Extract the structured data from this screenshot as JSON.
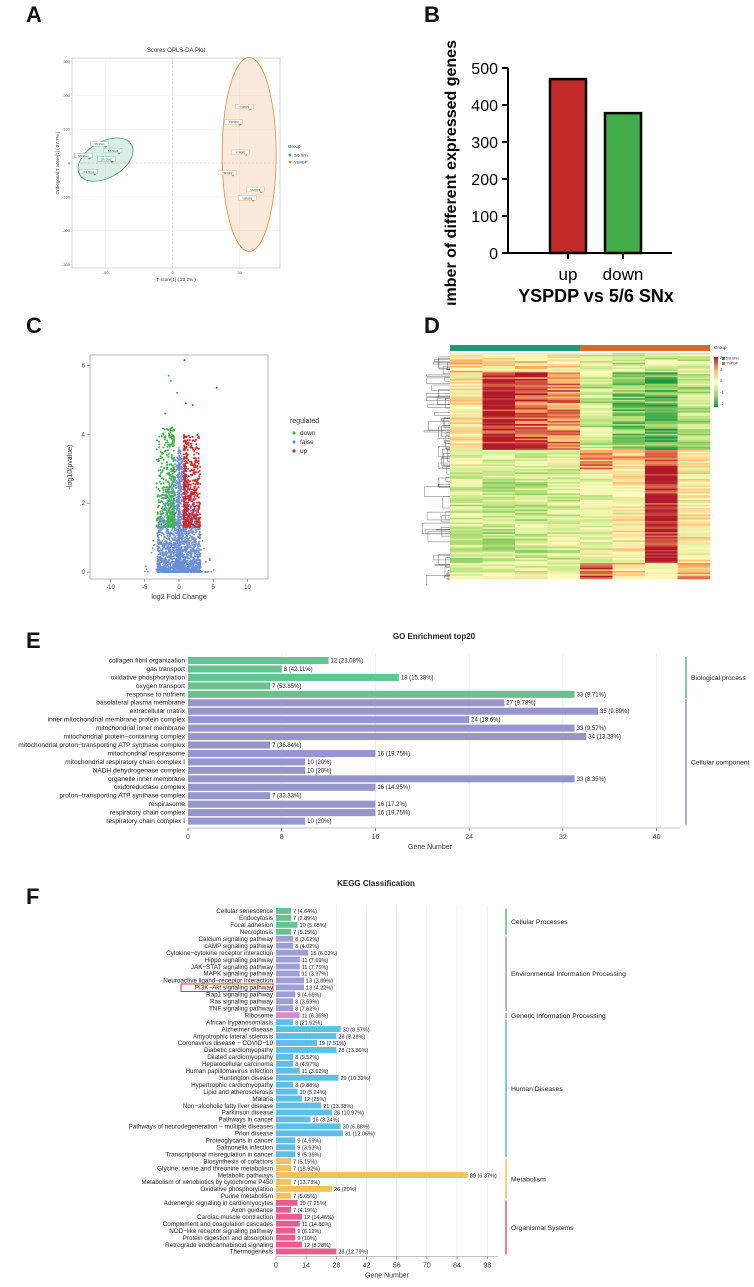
{
  "panel_labels": {
    "a": "A",
    "b": "B",
    "c": "C",
    "d": "D",
    "e": "E",
    "f": "F"
  },
  "colors": {
    "green": "#3e9b6f",
    "orange": "#e58a3c",
    "red_bar": "#c42a2a",
    "green_bar": "#43ad4b",
    "go_bp": "#66c28e",
    "go_cc": "#9696cc",
    "kegg_cp": "#66c28e",
    "kegg_eip": "#9f9fd6",
    "kegg_gip": "#d88ad8",
    "kegg_hd": "#5bbfe6",
    "kegg_met": "#f5c15a",
    "kegg_os": "#e85c91",
    "heat_high": "#b2182b",
    "heat_mid": "#ffffbf",
    "heat_low": "#1a9641"
  },
  "chart_data": [
    {
      "id": "A",
      "type": "scatter",
      "title": "Scores OPLS-DA Plot",
      "xlabel": "T score[1] ( 23.2% )",
      "ylabel": "Orthogonal T score[1] ( 27.7% )",
      "xlim": [
        -75,
        80
      ],
      "ylim": [
        -310,
        310
      ],
      "xticks": [
        "-50",
        "0",
        "50"
      ],
      "yticks": [
        "300",
        "200",
        "100",
        "0",
        "-100",
        "-200",
        "-300"
      ],
      "legend_title": "Group",
      "series": [
        {
          "name": "5/6 SNx",
          "points": [
            [
              -50,
              50,
              "5/6 SNx1"
            ],
            [
              -45,
              5,
              "5/6 SNx2"
            ],
            [
              -62,
              15,
              "5/6 SNx3"
            ],
            [
              -58,
              -32,
              "5/6 SNx4"
            ],
            [
              -40,
              30,
              "5/6 SNx5"
            ]
          ]
        },
        {
          "name": "YSPDP",
          "points": [
            [
              58,
              160,
              "YSPDP1"
            ],
            [
              50,
              115,
              "YSPDP2"
            ],
            [
              55,
              25,
              "YSPDP3"
            ],
            [
              45,
              -35,
              "YSPDP4"
            ],
            [
              60,
              -110,
              "YSPDP5"
            ],
            [
              66,
              -85,
              "YSPDP6"
            ]
          ]
        }
      ]
    },
    {
      "id": "B",
      "type": "bar",
      "categories": [
        "up",
        "down"
      ],
      "values": [
        470,
        378
      ],
      "ylabel": "number of different expressed genes",
      "xlabel": "YSPDP vs 5/6 SNx",
      "ylim": [
        0,
        500
      ],
      "yticks": [
        "0",
        "100",
        "200",
        "300",
        "400",
        "500"
      ]
    },
    {
      "id": "C",
      "type": "scatter",
      "title": "Volcano plot",
      "xlabel": "log2 Fold Change",
      "ylabel": "-log10(pvalue)",
      "xlim": [
        -13,
        13
      ],
      "ylim": [
        -0.2,
        6.3
      ],
      "xticks": [
        "-10",
        "-5",
        "0",
        "5",
        "10"
      ],
      "yticks": [
        "0",
        "2",
        "4",
        "6"
      ],
      "legend_title": "regulated",
      "legend": [
        "down",
        "false",
        "up"
      ],
      "series_counts": {
        "down": 378,
        "false": 2600,
        "up": 470
      },
      "outliers": [
        [
          0.8,
          6.15
        ],
        [
          5.5,
          5.35
        ],
        [
          -1.5,
          5.7
        ],
        [
          -1.2,
          5.55
        ],
        [
          -0.3,
          5.2
        ],
        [
          2.0,
          4.85
        ],
        [
          -2.0,
          4.6
        ],
        [
          1.0,
          4.9
        ]
      ]
    },
    {
      "id": "D",
      "type": "heatmap",
      "legend_title": "Group",
      "groups": [
        "5/6 SNx",
        "YSPDP"
      ],
      "scale_ticks": [
        "2",
        "1",
        "0",
        "-1",
        "-2"
      ],
      "columns": 8,
      "rows": 140,
      "blocks": [
        {
          "rows": [
            0,
            12
          ],
          "cols": [
            0.5,
            0.3,
            0.5,
            0.3,
            -0.4,
            -0.6,
            -0.5,
            -0.4
          ]
        },
        {
          "rows": [
            12,
            60
          ],
          "cols": [
            0.2,
            1.9,
            1.6,
            1.2,
            -0.6,
            -1.2,
            -1.5,
            -0.7
          ]
        },
        {
          "rows": [
            60,
            72
          ],
          "cols": [
            -0.3,
            -0.4,
            -0.3,
            -0.2,
            1.1,
            0.8,
            1.6,
            0.3
          ]
        },
        {
          "rows": [
            72,
            130
          ],
          "cols": [
            -0.5,
            -0.7,
            -0.6,
            -0.4,
            -0.2,
            0.2,
            2.0,
            0.2
          ]
        },
        {
          "rows": [
            130,
            140
          ],
          "cols": [
            -0.4,
            -0.3,
            -0.2,
            -0.3,
            1.5,
            0.5,
            0.3,
            0.9
          ]
        }
      ]
    },
    {
      "id": "E",
      "type": "bar",
      "orientation": "horizontal",
      "title": "GO Enrichment top20",
      "xlabel": "Gene Number",
      "xlim": [
        0,
        42
      ],
      "xticks": [
        "0",
        "8",
        "16",
        "24",
        "32",
        "40"
      ],
      "categories": [
        "collagen fibril organization",
        "gas transport",
        "oxidative phosphorylation",
        "oxygen transport",
        "response to nutrient",
        "basolateral plasma membrane",
        "extracellular matrix",
        "inner mitochondrial membrane protein complex",
        "mitochondrial inner membrane",
        "mitochondrial protein−containing complex",
        "mitochondrial proton−transporting ATP synthase complex",
        "mitochondrial respirasome",
        "mitochondrial respiratory chain complex I",
        "NADH dehydrogenase complex",
        "organelle inner membrane",
        "oxidoreductase complex",
        "proton−transporting ATP synthase complex",
        "respirasome",
        "respiratory chain complex",
        "respiratory chain complex I"
      ],
      "values": [
        12,
        8,
        18,
        7,
        33,
        27,
        35,
        24,
        33,
        34,
        7,
        16,
        10,
        10,
        33,
        16,
        7,
        16,
        16,
        10
      ],
      "labels": [
        "12 (23.08%)",
        "8 (42.11%)",
        "18 (15.38%)",
        "7 (53.85%)",
        "33 (9.71%)",
        "27 (9.78%)",
        "35 (9.89%)",
        "24 (18.6%)",
        "33 (9.57%)",
        "34 (13.28%)",
        "7 (36.84%)",
        "16 (19.75%)",
        "10 (20%)",
        "10 (20%)",
        "33 (8.35%)",
        "16 (14.95%)",
        "7 (33.33%)",
        "16 (17.2%)",
        "16 (19.75%)",
        "10 (20%)"
      ],
      "groups": [
        {
          "name": "Biological process",
          "start": 0,
          "end": 4
        },
        {
          "name": "Cellular component",
          "start": 5,
          "end": 19
        }
      ]
    },
    {
      "id": "F",
      "type": "bar",
      "orientation": "horizontal",
      "title": "KEGG Classification",
      "xlabel": "Gene Number",
      "xlim": [
        0,
        103
      ],
      "xticks": [
        "0",
        "14",
        "28",
        "42",
        "56",
        "70",
        "84",
        "98"
      ],
      "highlight": "PI3K−Akt signaling pathway",
      "categories": [
        "Cellular senescence",
        "Endocytosis",
        "Focal adhesion",
        "Necroptosis",
        "Calcium signaling pathway",
        "cAMP signaling pathway",
        "Cytokine−cytokine receptor interaction",
        "Hippo signaling pathway",
        "JAK−STAT signaling pathway",
        "MAPK signaling pathway",
        "Neuroactive ligand−receptor interaction",
        "PI3K−Akt signaling pathway",
        "Rap1 signaling pathway",
        "Ras signaling pathway",
        "TNF signaling pathway",
        "Ribosome",
        "African trypanosomiasis",
        "Alzheimer disease",
        "Amyotrophic lateral sclerosis",
        "Coronavirus disease − COVID−19",
        "Diabetic cardiomyopathy",
        "Dilated cardiomyopathy",
        "Hepatocellular carcinoma",
        "Human papillomavirus infection",
        "Huntington disease",
        "Hypertrophic cardiomyopathy",
        "Lipid and atherosclerosis",
        "Malaria",
        "Non−alcoholic fatty liver disease",
        "Parkinson disease",
        "Pathways in cancer",
        "Pathways of neurodegeneration − multiple diseases",
        "Prion disease",
        "Proteoglycans in cancer",
        "Salmonella infection",
        "Transcriptional misregulation in cancer",
        "Biosynthesis of cofactors",
        "Glycine, serine and threonine metabolism",
        "Metabolic pathways",
        "Metabolism of xenobiotics by cytochrome P450",
        "Oxidative phosphorylation",
        "Purine metabolism",
        "Adrenergic signaling in cardiomyocytes",
        "Axon guidance",
        "Cardiac muscle contraction",
        "Complement and coagulation cascades",
        "NOD−like receptor signaling pathway",
        "Protein digestion and absorption",
        "Retrograde endocannabinoid signaling",
        "Thermogenesis"
      ],
      "values": [
        7,
        7,
        10,
        7,
        8,
        8,
        15,
        11,
        11,
        11,
        13,
        13,
        9,
        8,
        8,
        11,
        8,
        30,
        28,
        19,
        28,
        8,
        8,
        11,
        29,
        8,
        10,
        12,
        21,
        26,
        16,
        30,
        31,
        9,
        9,
        9,
        7,
        7,
        89,
        7,
        26,
        7,
        10,
        7,
        12,
        11,
        9,
        9,
        12,
        28
      ],
      "labels": [
        "7 (4.64%)",
        "7 (2.89%)",
        "10 (5.68%)",
        "7 (5.15%)",
        "8 (3.62%)",
        "8 (4.02%)",
        "15 (6.02%)",
        "11 (7.69%)",
        "11 (7.75%)",
        "11 (3.97%)",
        "13 (3.89%)",
        "13 (4.22%)",
        "9 (4.66%)",
        "8 (3.69%)",
        "8 (7.62%)",
        "11 (6.36%)",
        "8 (21.62%)",
        "30 (8.57%)",
        "28 (8.28%)",
        "19 (7.51%)",
        "28 (13.86%)",
        "8 (9.52%)",
        "8 (4.97%)",
        "11 (3.62%)",
        "29 (10.32%)",
        "8 (9.88%)",
        "10 (5.24%)",
        "12 (25%)",
        "21 (13.38%)",
        "26 (10.97%)",
        "16 (3.34%)",
        "30 (6.88%)",
        "31 (12.06%)",
        "9 (4.69%)",
        "9 (3.93%)",
        "9 (5.36%)",
        "7 (5.15%)",
        "7 (18.92%)",
        "89 (6.37%)",
        "7 (13.73%)",
        "26 (20%)",
        "7 (5.65%)",
        "10 (7.25%)",
        "7 (4.19%)",
        "12 (14.46%)",
        "11 (14.86%)",
        "9 (6.12%)",
        "9 (10%)",
        "12 (8.28%)",
        "28 (12.79%)"
      ],
      "groups": [
        {
          "name": "Cellular Processes",
          "start": 0,
          "end": 3,
          "color": "kegg_cp"
        },
        {
          "name": "Environmental Information Processing",
          "start": 4,
          "end": 14,
          "color": "kegg_eip"
        },
        {
          "name": "Genetic Information Processing",
          "start": 15,
          "end": 15,
          "color": "kegg_gip"
        },
        {
          "name": "Human Diseases",
          "start": 16,
          "end": 35,
          "color": "kegg_hd"
        },
        {
          "name": "Metabolism",
          "start": 36,
          "end": 41,
          "color": "kegg_met"
        },
        {
          "name": "Organismal Systems",
          "start": 42,
          "end": 49,
          "color": "kegg_os"
        }
      ]
    }
  ]
}
